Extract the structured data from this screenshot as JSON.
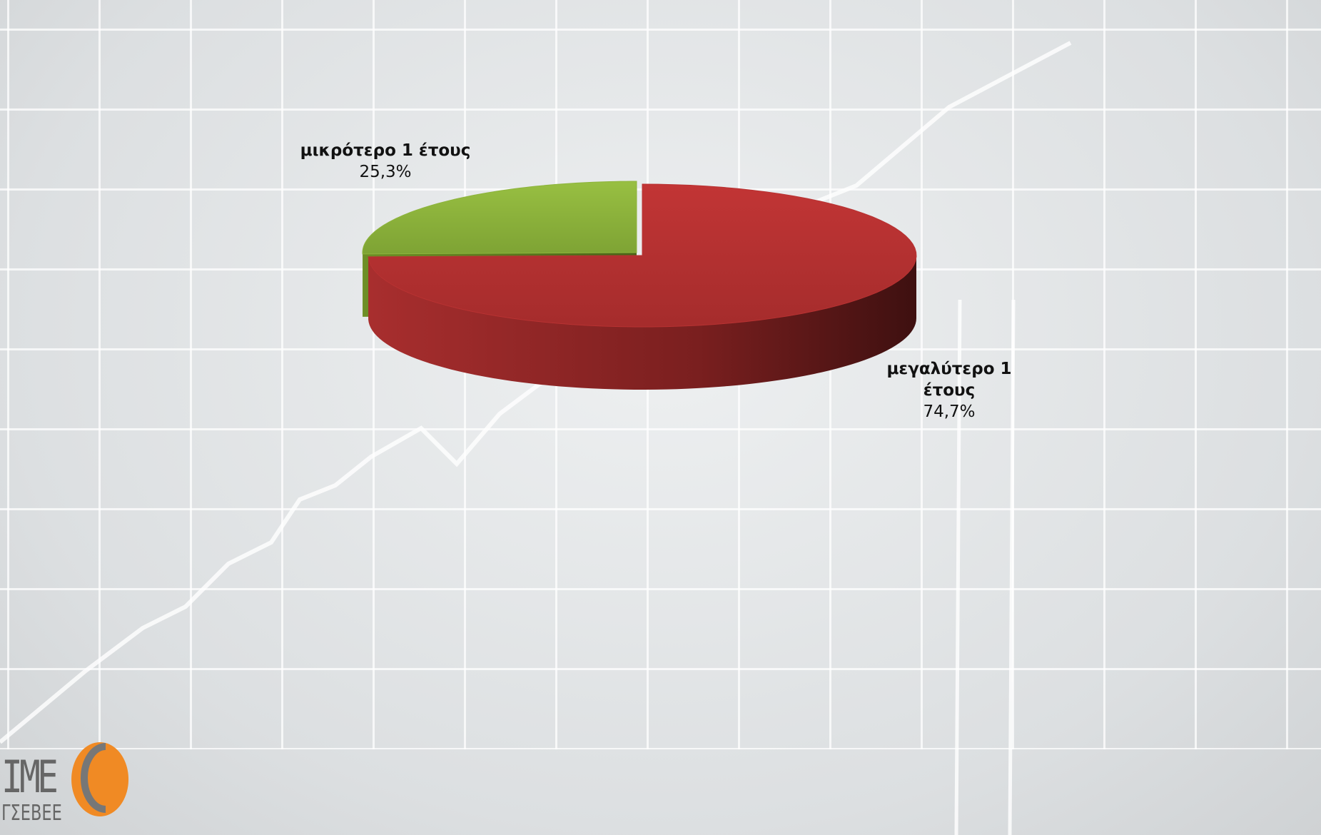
{
  "chart_data": {
    "type": "pie3d",
    "categories": [
      "μικρότερο 1 έτους",
      "μεγαλύτερο 1 έτους"
    ],
    "values": [
      25.3,
      74.7
    ],
    "value_labels": [
      "25,3%",
      "74,7%"
    ],
    "colors": [
      "#8db43c",
      "#b83232"
    ]
  },
  "logo": {
    "title": "IME",
    "subtitle": "ΓΣΕΒΕΕ"
  }
}
